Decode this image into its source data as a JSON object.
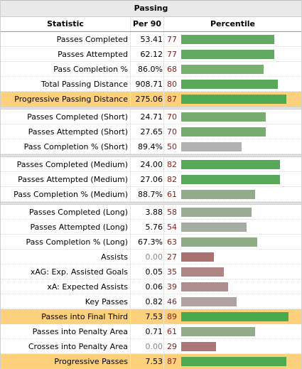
{
  "title": "Passing",
  "headers": {
    "statistic": "Statistic",
    "per90": "Per 90",
    "percentile": "Percentile"
  },
  "groups": [
    {
      "rows": [
        {
          "stat": "Passes Completed",
          "per90": "53.41",
          "pct": "77",
          "pct_value": 77,
          "color": "#62a962",
          "highlight": false
        },
        {
          "stat": "Passes Attempted",
          "per90": "62.12",
          "pct": "77",
          "pct_value": 77,
          "color": "#62a962",
          "highlight": false
        },
        {
          "stat": "Pass Completion %",
          "per90": "86.0%",
          "pct": "68",
          "pct_value": 68,
          "color": "#7aaf72",
          "highlight": false
        },
        {
          "stat": "Total Passing Distance",
          "per90": "908.71",
          "pct": "80",
          "pct_value": 80,
          "color": "#5aa95a",
          "highlight": false
        },
        {
          "stat": "Progressive Passing Distance",
          "per90": "275.06",
          "pct": "87",
          "pct_value": 87,
          "color": "#4fa94f",
          "highlight": true
        }
      ]
    },
    {
      "rows": [
        {
          "stat": "Passes Completed (Short)",
          "per90": "24.71",
          "pct": "70",
          "pct_value": 70,
          "color": "#76ad6e",
          "highlight": false
        },
        {
          "stat": "Passes Attempted (Short)",
          "per90": "27.65",
          "pct": "70",
          "pct_value": 70,
          "color": "#76ad6e",
          "highlight": false
        },
        {
          "stat": "Pass Completion % (Short)",
          "per90": "89.4%",
          "pct": "50",
          "pct_value": 50,
          "color": "#b2b2b2",
          "highlight": false
        }
      ]
    },
    {
      "rows": [
        {
          "stat": "Passes Completed (Medium)",
          "per90": "24.00",
          "pct": "82",
          "pct_value": 82,
          "color": "#56a956",
          "highlight": false
        },
        {
          "stat": "Passes Attempted (Medium)",
          "per90": "27.06",
          "pct": "82",
          "pct_value": 82,
          "color": "#56a956",
          "highlight": false
        },
        {
          "stat": "Pass Completion % (Medium)",
          "per90": "88.7%",
          "pct": "61",
          "pct_value": 61,
          "color": "#92ab8a",
          "highlight": false
        }
      ]
    },
    {
      "rows": [
        {
          "stat": "Passes Completed (Long)",
          "per90": "3.88",
          "pct": "58",
          "pct_value": 58,
          "color": "#9aac94",
          "highlight": false
        },
        {
          "stat": "Passes Attempted (Long)",
          "per90": "5.76",
          "pct": "54",
          "pct_value": 54,
          "color": "#a5ada2",
          "highlight": false
        },
        {
          "stat": "Pass Completion % (Long)",
          "per90": "67.3%",
          "pct": "63",
          "pct_value": 63,
          "color": "#8eab86",
          "highlight": false
        },
        {
          "stat": "Assists",
          "per90": "0.00",
          "pct": "27",
          "pct_value": 27,
          "color": "#a97270",
          "highlight": false,
          "zero": true
        },
        {
          "stat": "xAG: Exp. Assisted Goals",
          "per90": "0.05",
          "pct": "35",
          "pct_value": 35,
          "color": "#ae8686",
          "highlight": false
        },
        {
          "stat": "xA: Expected Assists",
          "per90": "0.06",
          "pct": "39",
          "pct_value": 39,
          "color": "#ae8e8e",
          "highlight": false
        },
        {
          "stat": "Key Passes",
          "per90": "0.82",
          "pct": "46",
          "pct_value": 46,
          "color": "#b0a2a2",
          "highlight": false
        },
        {
          "stat": "Passes into Final Third",
          "per90": "7.53",
          "pct": "89",
          "pct_value": 89,
          "color": "#4aa94a",
          "highlight": true
        },
        {
          "stat": "Passes into Penalty Area",
          "per90": "0.71",
          "pct": "61",
          "pct_value": 61,
          "color": "#92ab8a",
          "highlight": false
        },
        {
          "stat": "Crosses into Penalty Area",
          "per90": "0.00",
          "pct": "29",
          "pct_value": 29,
          "color": "#aa7676",
          "highlight": false,
          "zero": true
        },
        {
          "stat": "Progressive Passes",
          "per90": "7.53",
          "pct": "87",
          "pct_value": 87,
          "color": "#4fa94f",
          "highlight": true
        }
      ]
    }
  ]
}
